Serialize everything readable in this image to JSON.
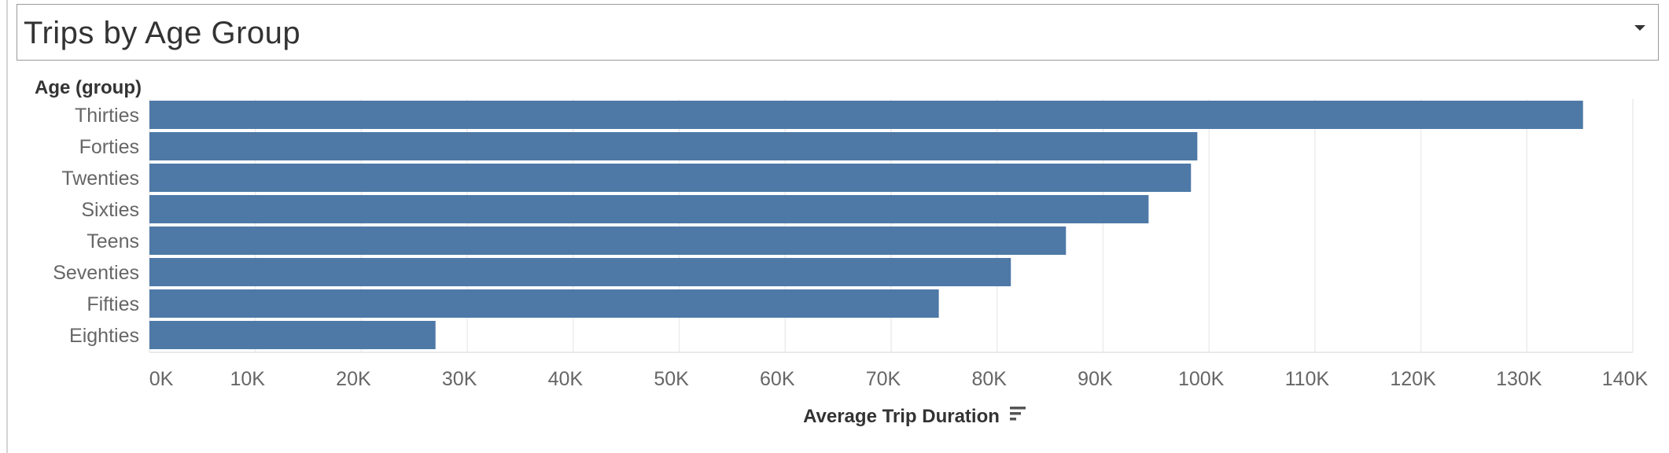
{
  "title": "Trips by Age Group",
  "chart_data": {
    "type": "bar",
    "orientation": "horizontal",
    "row_header": "Age (group)",
    "categories": [
      "Thirties",
      "Forties",
      "Twenties",
      "Sixties",
      "Teens",
      "Seventies",
      "Fifties",
      "Eighties"
    ],
    "values": [
      135300,
      98900,
      98300,
      94300,
      86500,
      81300,
      74500,
      27000
    ],
    "xlabel": "Average Trip Duration",
    "xlim": [
      0,
      140000
    ],
    "x_ticks": [
      0,
      10000,
      20000,
      30000,
      40000,
      50000,
      60000,
      70000,
      80000,
      90000,
      100000,
      110000,
      120000,
      130000,
      140000
    ],
    "x_tick_labels": [
      "0K",
      "10K",
      "20K",
      "30K",
      "40K",
      "50K",
      "60K",
      "70K",
      "80K",
      "90K",
      "100K",
      "110K",
      "120K",
      "130K",
      "140K"
    ],
    "grid": "vertical",
    "sorted": "descending",
    "colors": {
      "bar": "#4e79a7",
      "grid": "#ececec",
      "tick_text": "#666666",
      "header_text": "#333333"
    }
  },
  "icons": {
    "dropdown": "dropdown-caret-icon",
    "sort": "sort-descending-icon"
  }
}
